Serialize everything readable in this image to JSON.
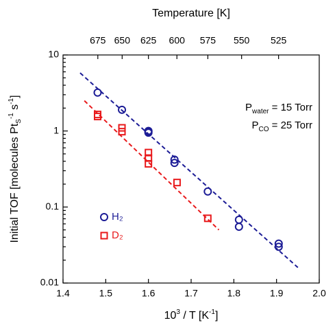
{
  "chart_data": {
    "type": "scatter",
    "title": "Temperature [K]",
    "x_label_parts": [
      {
        "t": "10"
      },
      {
        "t": "3",
        "sup": true
      },
      {
        "t": " / T [K"
      },
      {
        "t": "-1",
        "sup": true
      },
      {
        "t": "]"
      }
    ],
    "y_label_parts": [
      {
        "t": "Initial TOF [molecules Pt"
      },
      {
        "t": "S",
        "sub": true
      },
      {
        "t": "-1",
        "sup": true
      },
      {
        "t": " s"
      },
      {
        "t": "-1",
        "sup": true
      },
      {
        "t": "]"
      }
    ],
    "xlim": [
      1.4,
      2.0
    ],
    "xticks": [
      1.4,
      1.5,
      1.6,
      1.7,
      1.8,
      1.9,
      {
        "value": 2,
        "label": "2.0"
      }
    ],
    "x2ticks": [
      675,
      650,
      625,
      600,
      575,
      550,
      525
    ],
    "ylim": [
      0.01,
      10
    ],
    "yticks": [
      0.01,
      0.1,
      1,
      10
    ],
    "log_y": true,
    "legend": "lower left",
    "series": [
      {
        "name": "H₂",
        "color": "#1c1c96",
        "marker": "circle",
        "x": [
          1.481,
          1.538,
          1.6,
          1.6,
          1.6,
          1.661,
          1.661,
          1.739,
          1.812,
          1.812,
          1.905,
          1.905
        ],
        "values": [
          3.2,
          1.9,
          0.95,
          1.0,
          0.98,
          0.42,
          0.38,
          0.16,
          0.068,
          0.055,
          0.033,
          0.03
        ]
      },
      {
        "name": "D₂",
        "color": "#e8191b",
        "marker": "square",
        "x": [
          1.481,
          1.481,
          1.538,
          1.538,
          1.6,
          1.6,
          1.6,
          1.667,
          1.739
        ],
        "values": [
          1.65,
          1.55,
          1.1,
          0.98,
          0.52,
          0.44,
          0.37,
          0.21,
          0.071
        ]
      }
    ],
    "fit_lines": [
      {
        "color": "#1c1c96",
        "x": [
          1.44,
          1.95
        ],
        "values": [
          5.8,
          0.016
        ]
      },
      {
        "color": "#e8191b",
        "x": [
          1.45,
          1.765
        ],
        "values": [
          2.5,
          0.05
        ]
      }
    ],
    "annotations": [
      {
        "base": "P",
        "sub": "water",
        "text": " = 15 Torr"
      },
      {
        "base": "P",
        "sub": "CO",
        "text": " = 25 Torr"
      }
    ]
  }
}
